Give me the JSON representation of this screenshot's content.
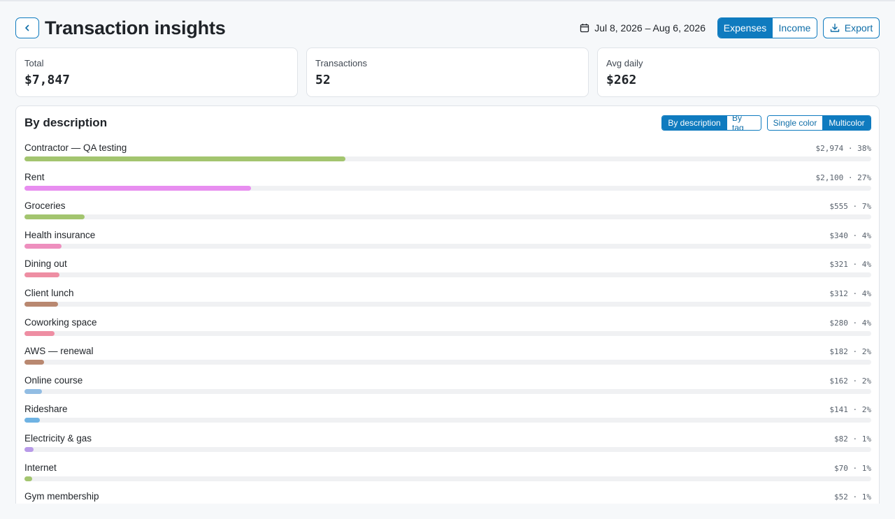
{
  "header": {
    "back_label": "Back",
    "title": "Transaction insights",
    "date_range": "Jul 8, 2026 – Aug 6, 2026",
    "type_toggle": [
      "Expenses",
      "Income"
    ],
    "type_active": "Expenses",
    "export_label": "Export"
  },
  "stats": [
    {
      "label": "Total",
      "value": "$7,847"
    },
    {
      "label": "Transactions",
      "value": "52"
    },
    {
      "label": "Avg daily",
      "value": "$262"
    }
  ],
  "panel": {
    "title": "By description",
    "group_toggle": [
      "By description",
      "By tag"
    ],
    "group_active": "By description",
    "color_toggle": [
      "Single color",
      "Multicolor"
    ],
    "color_active": "Multicolor"
  },
  "colors": {
    "accent": "#0f7bbf",
    "green": "#a3c56f",
    "violet": "#e88ef0",
    "pink": "#ee8fbe",
    "rose": "#ee8ea3",
    "brown": "#b98870",
    "blue": "#92bde3",
    "sky": "#6fb3e3",
    "lilac": "#b89ae8"
  },
  "items": [
    {
      "label": "Contractor — QA testing",
      "meta": "$2,974 · 38%",
      "amount": 2974,
      "color": "#a3c56f"
    },
    {
      "label": "Rent",
      "meta": "$2,100 · 27%",
      "amount": 2100,
      "color": "#e88ef0"
    },
    {
      "label": "Groceries",
      "meta": "$555 · 7%",
      "amount": 555,
      "color": "#a3c56f"
    },
    {
      "label": "Health insurance",
      "meta": "$340 · 4%",
      "amount": 340,
      "color": "#ee8fbe"
    },
    {
      "label": "Dining out",
      "meta": "$321 · 4%",
      "amount": 321,
      "color": "#ee8ea3"
    },
    {
      "label": "Client lunch",
      "meta": "$312 · 4%",
      "amount": 312,
      "color": "#b98870"
    },
    {
      "label": "Coworking space",
      "meta": "$280 · 4%",
      "amount": 280,
      "color": "#ee8ea3"
    },
    {
      "label": "AWS — renewal",
      "meta": "$182 · 2%",
      "amount": 182,
      "color": "#b98870"
    },
    {
      "label": "Online course",
      "meta": "$162 · 2%",
      "amount": 162,
      "color": "#92bde3"
    },
    {
      "label": "Rideshare",
      "meta": "$141 · 2%",
      "amount": 141,
      "color": "#6fb3e3"
    },
    {
      "label": "Electricity & gas",
      "meta": "$82 · 1%",
      "amount": 82,
      "color": "#b89ae8"
    },
    {
      "label": "Internet",
      "meta": "$70 · 1%",
      "amount": 70,
      "color": "#a3c56f"
    },
    {
      "label": "Gym membership",
      "meta": "$52 · 1%",
      "amount": 52,
      "color": "#a3c56f"
    }
  ]
}
